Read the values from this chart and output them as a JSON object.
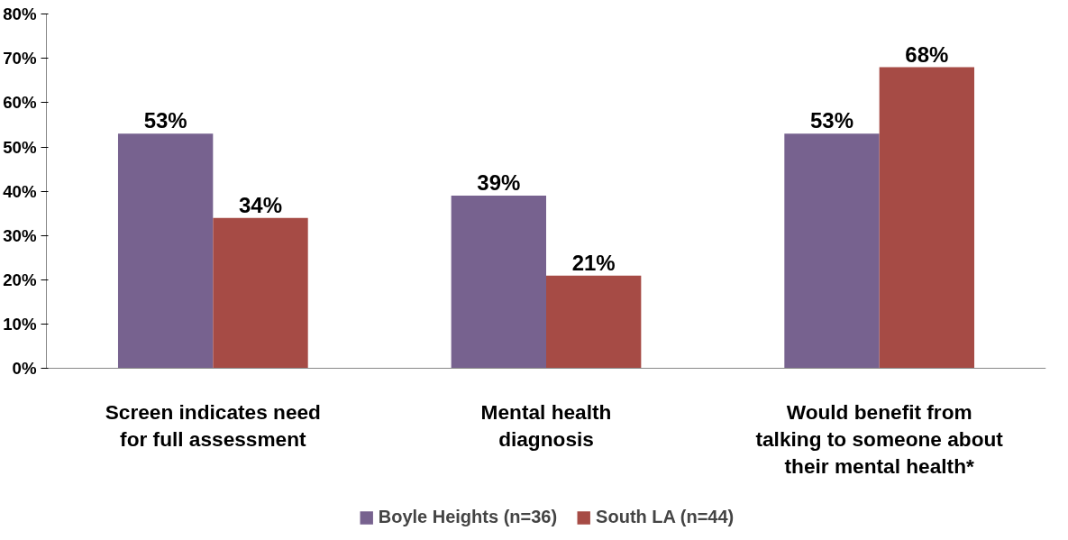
{
  "chart_data": {
    "type": "bar",
    "categories": [
      "Screen indicates need\nfor full assessment",
      "Mental health\ndiagnosis",
      "Would benefit from\ntalking to someone about\ntheir mental health*"
    ],
    "series": [
      {
        "name": "Boyle Heights (n=36)",
        "color": "#77628f",
        "values": [
          53,
          39,
          53
        ],
        "value_labels": [
          "53%",
          "39%",
          "53%"
        ]
      },
      {
        "name": "South LA (n=44)",
        "color": "#a64b45",
        "values": [
          34,
          21,
          68
        ],
        "value_labels": [
          "34%",
          "21%",
          "68%"
        ]
      }
    ],
    "ylim": [
      0,
      80
    ],
    "yticks": [
      {
        "value": 0,
        "label": "0%"
      },
      {
        "value": 10,
        "label": "10%"
      },
      {
        "value": 20,
        "label": "20%"
      },
      {
        "value": 30,
        "label": "30%"
      },
      {
        "value": 40,
        "label": "40%"
      },
      {
        "value": 50,
        "label": "50%"
      },
      {
        "value": 60,
        "label": "60%"
      },
      {
        "value": 70,
        "label": "70%"
      },
      {
        "value": 80,
        "label": "80%"
      }
    ],
    "legend": "bottom"
  }
}
